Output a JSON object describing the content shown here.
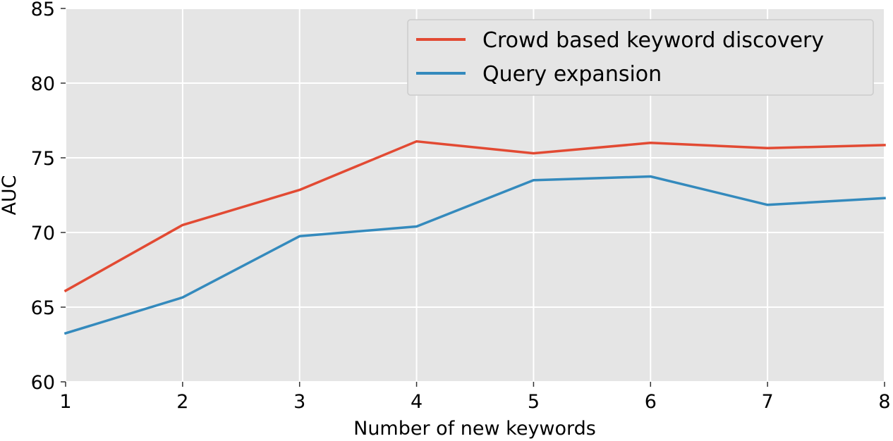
{
  "chart_data": {
    "type": "line",
    "title": "",
    "xlabel": "Number of new keywords",
    "ylabel": "AUC",
    "x": [
      1,
      2,
      3,
      4,
      5,
      6,
      7,
      8
    ],
    "xlim": [
      1,
      8
    ],
    "ylim": [
      60,
      85
    ],
    "xticks": [
      "1",
      "2",
      "3",
      "4",
      "5",
      "6",
      "7",
      "8"
    ],
    "yticks": [
      "60",
      "65",
      "70",
      "75",
      "80",
      "85"
    ],
    "grid": true,
    "legend_position": "top-right",
    "series": [
      {
        "name": "Crowd based keyword discovery",
        "color": "#E24A33",
        "values": [
          66.1,
          70.5,
          72.85,
          76.1,
          75.3,
          76.0,
          75.65,
          75.85
        ]
      },
      {
        "name": "Query expansion",
        "color": "#348ABD",
        "values": [
          63.25,
          65.65,
          69.75,
          70.4,
          73.5,
          73.75,
          71.85,
          72.3
        ]
      }
    ]
  }
}
